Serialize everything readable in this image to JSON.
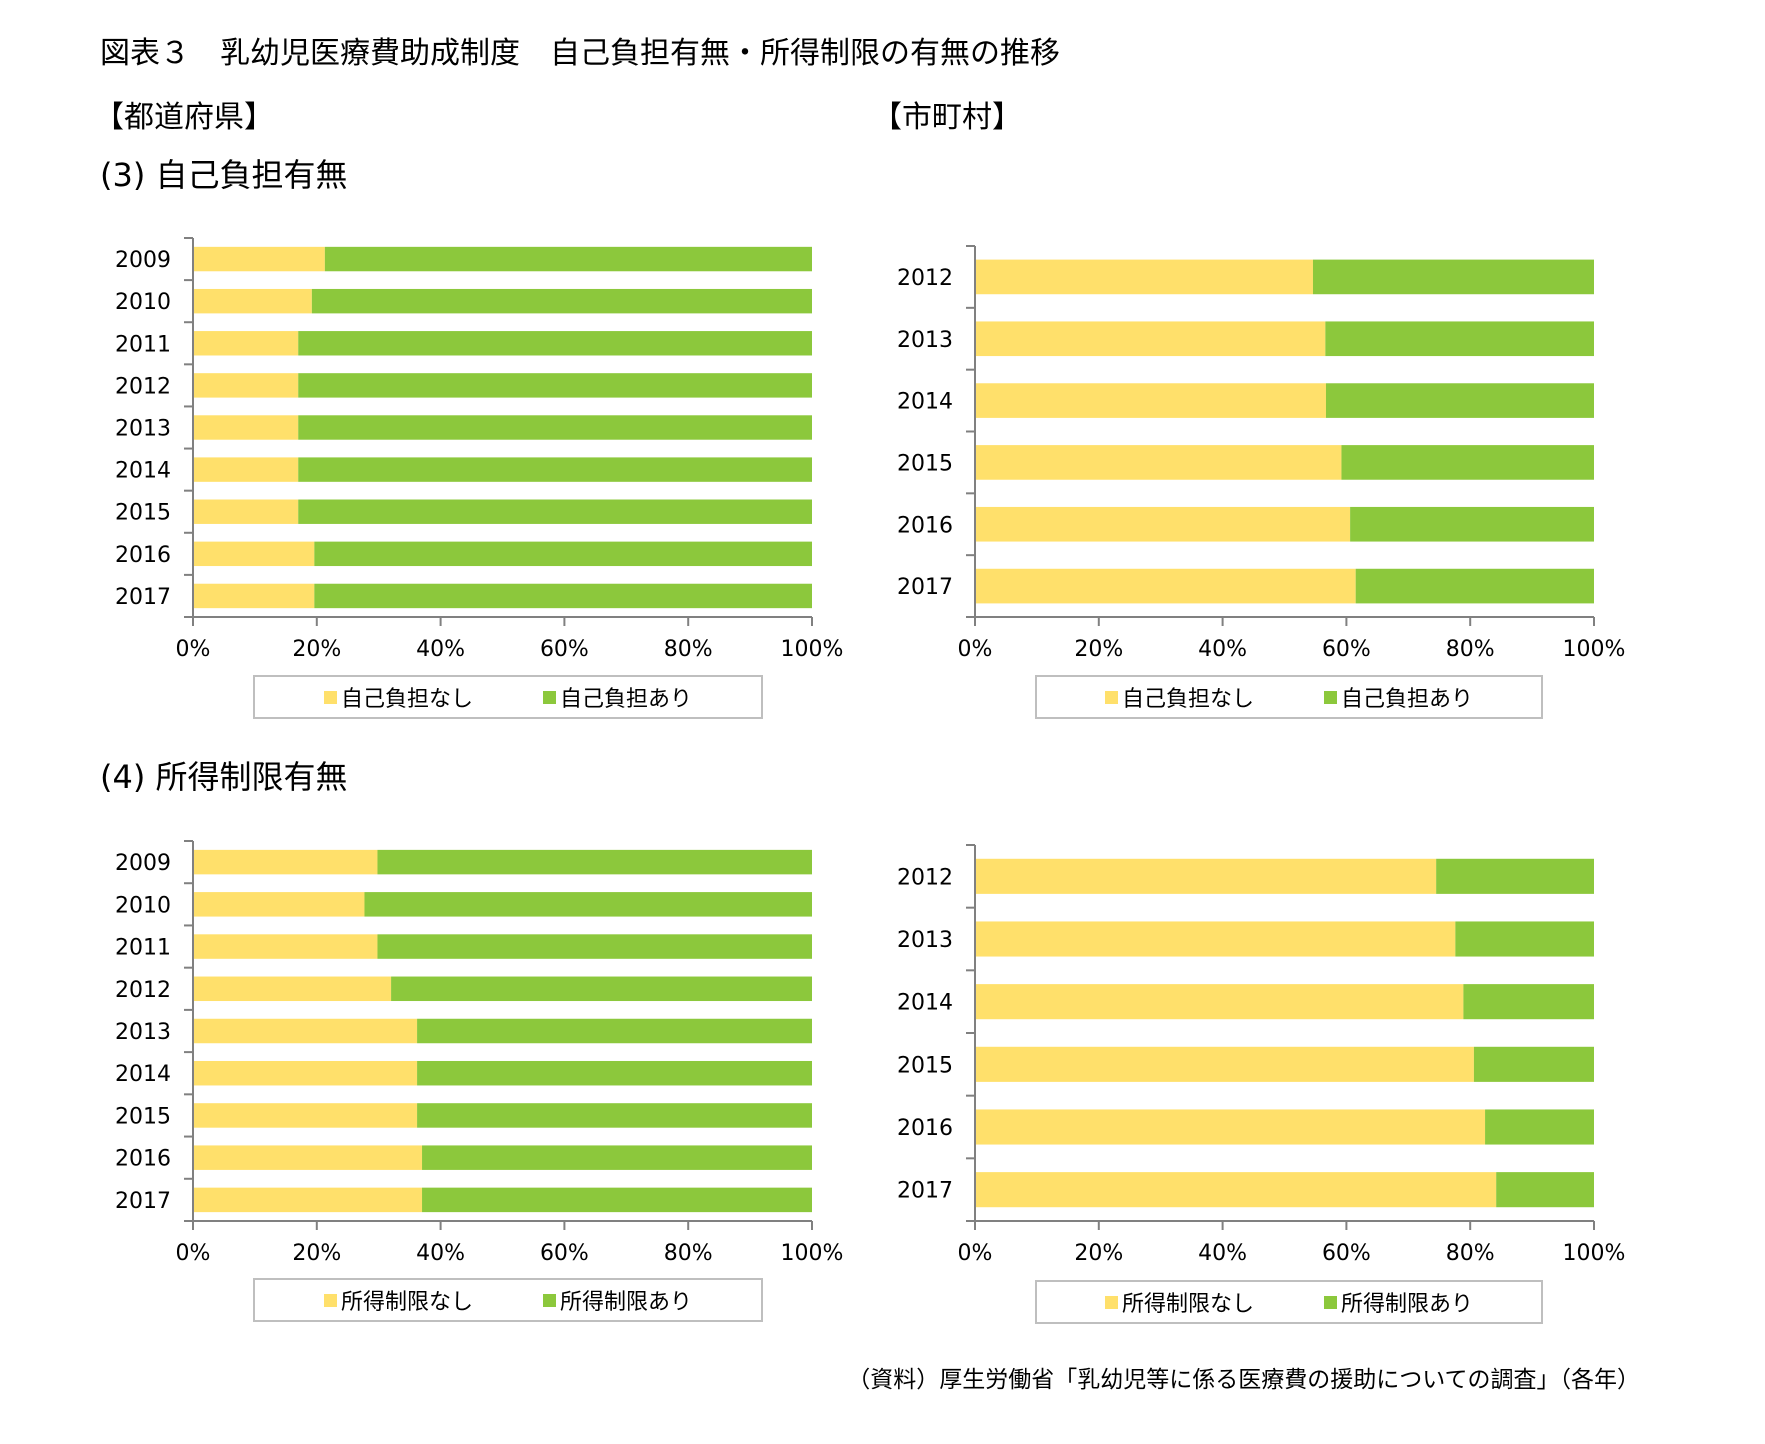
{
  "title": "図表３　乳幼児医療費助成制度　自己負担有無・所得制限の有無の推移",
  "group_labels": {
    "prefecture": "【都道府県】",
    "municipality": "【市町村】"
  },
  "sections": {
    "self_pay": "(3) 自己負担有無",
    "income_limit": "(4) 所得制限有無"
  },
  "footer": "（資料）厚生労働省「乳幼児等に係る医療費の援助についての調査」（各年）",
  "colors": {
    "none": "#FFE06B",
    "has": "#8CC83C",
    "axis": "#808080",
    "legend_border": "#BFBFBF"
  },
  "chart_data": [
    {
      "id": "prefecture-self-pay",
      "type": "bar",
      "stacked": true,
      "orientation": "horizontal",
      "title": "【都道府県】(3) 自己負担有無",
      "categories": [
        "2009",
        "2010",
        "2011",
        "2012",
        "2013",
        "2014",
        "2015",
        "2016",
        "2017"
      ],
      "series": [
        {
          "name": "自己負担なし",
          "values": [
            21.3,
            19.2,
            17.0,
            17.0,
            17.0,
            17.0,
            17.0,
            19.6,
            19.6
          ]
        },
        {
          "name": "自己負担あり",
          "values": [
            78.7,
            80.8,
            83.0,
            83.0,
            83.0,
            83.0,
            83.0,
            80.4,
            80.4
          ]
        }
      ],
      "xlim": [
        0,
        100
      ],
      "xticks": [
        "0%",
        "20%",
        "40%",
        "60%",
        "80%",
        "100%"
      ],
      "xlabel": "",
      "ylabel": "",
      "grid": false,
      "legend": "bottom"
    },
    {
      "id": "municipality-self-pay",
      "type": "bar",
      "stacked": true,
      "orientation": "horizontal",
      "title": "【市町村】(3) 自己負担有無",
      "categories": [
        "2012",
        "2013",
        "2014",
        "2015",
        "2016",
        "2017"
      ],
      "series": [
        {
          "name": "自己負担なし",
          "values": [
            54.6,
            56.6,
            56.7,
            59.2,
            60.6,
            61.5
          ]
        },
        {
          "name": "自己負担あり",
          "values": [
            45.4,
            43.4,
            43.3,
            40.8,
            39.4,
            38.5
          ]
        }
      ],
      "xlim": [
        0,
        100
      ],
      "xticks": [
        "0%",
        "20%",
        "40%",
        "60%",
        "80%",
        "100%"
      ],
      "xlabel": "",
      "ylabel": "",
      "grid": false,
      "legend": "bottom"
    },
    {
      "id": "prefecture-income-limit",
      "type": "bar",
      "stacked": true,
      "orientation": "horizontal",
      "title": "【都道府県】(4) 所得制限有無",
      "categories": [
        "2009",
        "2010",
        "2011",
        "2012",
        "2013",
        "2014",
        "2015",
        "2016",
        "2017"
      ],
      "series": [
        {
          "name": "所得制限なし",
          "values": [
            29.8,
            27.7,
            29.8,
            32.0,
            36.2,
            36.2,
            36.2,
            37.0,
            37.0
          ]
        },
        {
          "name": "所得制限あり",
          "values": [
            70.2,
            72.3,
            70.2,
            68.0,
            63.8,
            63.8,
            63.8,
            63.0,
            63.0
          ]
        }
      ],
      "xlim": [
        0,
        100
      ],
      "xticks": [
        "0%",
        "20%",
        "40%",
        "60%",
        "80%",
        "100%"
      ],
      "xlabel": "",
      "ylabel": "",
      "grid": false,
      "legend": "bottom"
    },
    {
      "id": "municipality-income-limit",
      "type": "bar",
      "stacked": true,
      "orientation": "horizontal",
      "title": "【市町村】(4) 所得制限有無",
      "categories": [
        "2012",
        "2013",
        "2014",
        "2015",
        "2016",
        "2017"
      ],
      "series": [
        {
          "name": "所得制限なし",
          "values": [
            74.5,
            77.6,
            78.9,
            80.6,
            82.4,
            84.2
          ]
        },
        {
          "name": "所得制限あり",
          "values": [
            25.5,
            22.4,
            21.1,
            19.4,
            17.6,
            15.8
          ]
        }
      ],
      "xlim": [
        0,
        100
      ],
      "xticks": [
        "0%",
        "20%",
        "40%",
        "60%",
        "80%",
        "100%"
      ],
      "xlabel": "",
      "ylabel": "",
      "grid": false,
      "legend": "bottom"
    }
  ]
}
